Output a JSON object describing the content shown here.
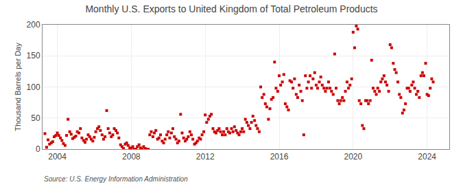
{
  "chart_data": {
    "type": "scatter",
    "title": "Monthly U.S. Exports to United Kingdom of Total Petroleum Products",
    "ylabel": "Thousand Barrels per Day",
    "annotations": [
      "Source: U.S. Energy Information Administration"
    ],
    "color": "#cc0000",
    "marker": "square",
    "grid": true,
    "xlim": [
      2003.2,
      2025.2
    ],
    "xticks": [
      2004,
      2008,
      2012,
      2016,
      2020,
      2024
    ],
    "ylim": [
      0,
      200
    ],
    "yticks": [
      0,
      50,
      100,
      150,
      200
    ],
    "x": [
      2003.33,
      2003.42,
      2003.5,
      2003.58,
      2003.67,
      2003.75,
      2003.83,
      2003.92,
      2004.0,
      2004.08,
      2004.17,
      2004.25,
      2004.33,
      2004.42,
      2004.5,
      2004.58,
      2004.67,
      2004.75,
      2004.83,
      2004.92,
      2005.0,
      2005.08,
      2005.17,
      2005.25,
      2005.33,
      2005.42,
      2005.5,
      2005.58,
      2005.67,
      2005.75,
      2005.83,
      2005.92,
      2006.0,
      2006.08,
      2006.17,
      2006.25,
      2006.33,
      2006.42,
      2006.5,
      2006.58,
      2006.67,
      2006.75,
      2006.83,
      2006.92,
      2007.0,
      2007.08,
      2007.17,
      2007.25,
      2007.33,
      2007.42,
      2007.5,
      2007.58,
      2007.67,
      2007.75,
      2007.83,
      2007.92,
      2008.0,
      2008.08,
      2008.17,
      2008.25,
      2008.33,
      2008.42,
      2008.5,
      2008.58,
      2008.67,
      2008.75,
      2008.83,
      2008.92,
      2009.0,
      2009.08,
      2009.17,
      2009.25,
      2009.33,
      2009.42,
      2009.5,
      2009.58,
      2009.67,
      2009.75,
      2009.83,
      2009.92,
      2010.0,
      2010.08,
      2010.17,
      2010.25,
      2010.33,
      2010.42,
      2010.5,
      2010.58,
      2010.67,
      2010.75,
      2010.83,
      2010.92,
      2011.0,
      2011.08,
      2011.17,
      2011.25,
      2011.33,
      2011.42,
      2011.5,
      2011.58,
      2011.67,
      2011.75,
      2011.83,
      2011.92,
      2012.0,
      2012.08,
      2012.17,
      2012.25,
      2012.33,
      2012.42,
      2012.5,
      2012.58,
      2012.67,
      2012.75,
      2012.83,
      2012.92,
      2013.0,
      2013.08,
      2013.17,
      2013.25,
      2013.33,
      2013.42,
      2013.5,
      2013.58,
      2013.67,
      2013.75,
      2013.83,
      2013.92,
      2014.0,
      2014.08,
      2014.17,
      2014.25,
      2014.33,
      2014.42,
      2014.5,
      2014.58,
      2014.67,
      2014.75,
      2014.83,
      2014.92,
      2015.0,
      2015.08,
      2015.17,
      2015.25,
      2015.33,
      2015.42,
      2015.5,
      2015.58,
      2015.67,
      2015.75,
      2015.83,
      2015.92,
      2016.0,
      2016.08,
      2016.17,
      2016.25,
      2016.33,
      2016.42,
      2016.5,
      2016.58,
      2016.67,
      2016.75,
      2016.83,
      2016.92,
      2017.0,
      2017.08,
      2017.17,
      2017.25,
      2017.33,
      2017.42,
      2017.5,
      2017.58,
      2017.67,
      2017.75,
      2017.83,
      2017.92,
      2018.0,
      2018.08,
      2018.17,
      2018.25,
      2018.33,
      2018.42,
      2018.5,
      2018.58,
      2018.67,
      2018.75,
      2018.83,
      2018.92,
      2019.0,
      2019.08,
      2019.17,
      2019.25,
      2019.33,
      2019.42,
      2019.5,
      2019.58,
      2019.67,
      2019.75,
      2019.83,
      2019.92,
      2020.0,
      2020.08,
      2020.17,
      2020.25,
      2020.33,
      2020.42,
      2020.5,
      2020.58,
      2020.67,
      2020.75,
      2020.83,
      2020.92,
      2021.0,
      2021.08,
      2021.17,
      2021.25,
      2021.33,
      2021.42,
      2021.5,
      2021.58,
      2021.67,
      2021.75,
      2021.83,
      2021.92,
      2022.0,
      2022.08,
      2022.17,
      2022.25,
      2022.33,
      2022.42,
      2022.5,
      2022.58,
      2022.67,
      2022.75,
      2022.83,
      2022.92,
      2023.0,
      2023.08,
      2023.17,
      2023.25,
      2023.33,
      2023.42,
      2023.5,
      2023.58,
      2023.67,
      2023.75,
      2023.83,
      2023.92,
      2024.0,
      2024.08,
      2024.17,
      2024.25,
      2024.33
    ],
    "values": [
      25,
      3,
      15,
      8,
      10,
      12,
      20,
      22,
      26,
      22,
      18,
      14,
      9,
      6,
      22,
      48,
      28,
      24,
      17,
      19,
      21,
      28,
      26,
      33,
      18,
      14,
      11,
      16,
      23,
      20,
      16,
      13,
      19,
      28,
      33,
      36,
      30,
      23,
      16,
      20,
      62,
      33,
      26,
      20,
      23,
      33,
      30,
      26,
      18,
      7,
      4,
      1,
      8,
      10,
      6,
      2,
      1,
      4,
      0,
      0,
      4,
      7,
      2,
      0,
      4,
      1,
      0,
      0,
      23,
      28,
      20,
      26,
      30,
      16,
      18,
      23,
      13,
      10,
      16,
      23,
      28,
      18,
      26,
      33,
      20,
      16,
      10,
      13,
      56,
      26,
      18,
      13,
      16,
      20,
      28,
      23,
      16,
      8,
      10,
      13,
      18,
      16,
      23,
      28,
      55,
      43,
      48,
      53,
      56,
      33,
      28,
      26,
      30,
      33,
      28,
      23,
      28,
      23,
      33,
      28,
      26,
      33,
      28,
      36,
      30,
      26,
      23,
      28,
      33,
      28,
      48,
      43,
      38,
      33,
      43,
      53,
      46,
      38,
      33,
      28,
      100,
      83,
      88,
      73,
      68,
      48,
      65,
      80,
      83,
      140,
      98,
      93,
      118,
      103,
      108,
      120,
      73,
      68,
      63,
      110,
      108,
      98,
      113,
      88,
      83,
      103,
      93,
      78,
      23,
      118,
      98,
      108,
      118,
      98,
      113,
      123,
      103,
      98,
      108,
      116,
      103,
      98,
      93,
      98,
      108,
      98,
      93,
      88,
      153,
      98,
      78,
      73,
      78,
      83,
      78,
      93,
      108,
      98,
      103,
      113,
      188,
      163,
      198,
      193,
      78,
      73,
      38,
      33,
      78,
      78,
      73,
      78,
      143,
      98,
      93,
      88,
      98,
      93,
      108,
      113,
      118,
      108,
      103,
      93,
      168,
      163,
      138,
      128,
      123,
      108,
      88,
      83,
      58,
      63,
      73,
      98,
      98,
      93,
      103,
      108,
      98,
      88,
      93,
      83,
      118,
      123,
      118,
      138,
      88,
      86,
      98,
      113,
      108
    ]
  }
}
